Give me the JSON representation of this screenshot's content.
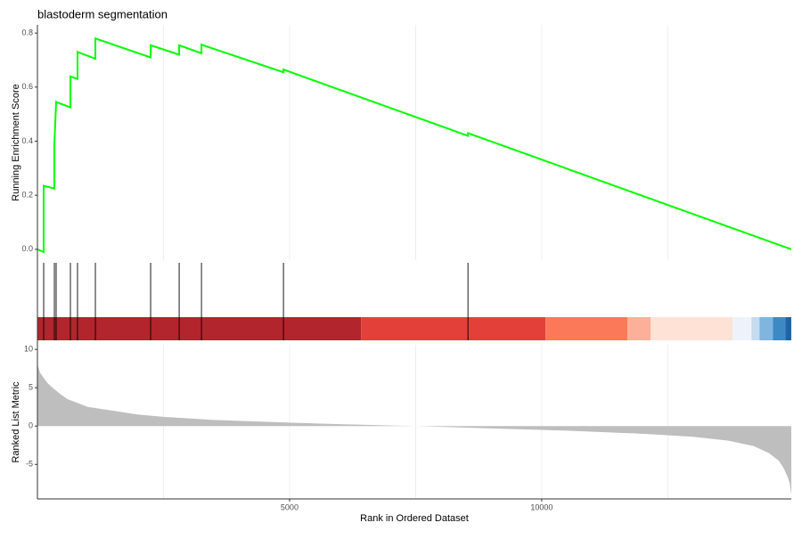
{
  "chart_data": [
    {
      "type": "line",
      "title": "blastoderm segmentation",
      "ylabel": "Running Enrichment Score",
      "color": "#00ff00",
      "x": [
        0,
        124,
        124,
        336,
        336,
        371,
        654,
        654,
        795,
        795,
        1149,
        1149,
        2245,
        2245,
        2811,
        2811,
        3253,
        3253,
        4879,
        4879,
        8538,
        8538,
        14950
      ],
      "values": [
        0.0,
        -0.01,
        0.235,
        0.225,
        0.39,
        0.545,
        0.525,
        0.64,
        0.63,
        0.73,
        0.705,
        0.78,
        0.71,
        0.755,
        0.72,
        0.755,
        0.725,
        0.757,
        0.655,
        0.665,
        0.42,
        0.43,
        0.0
      ],
      "xlim": [
        0,
        14950
      ],
      "ylim": [
        -0.04,
        0.83
      ],
      "yticks": [
        {
          "value": 0,
          "label": "0.0"
        },
        {
          "value": 0.2,
          "label": "0.2"
        },
        {
          "value": 0.4,
          "label": "0.4"
        },
        {
          "value": 0.6,
          "label": "0.6"
        },
        {
          "value": 0.8,
          "label": "0.8"
        }
      ],
      "xgrid": [
        2500,
        5000,
        7500,
        10000,
        12500
      ]
    },
    {
      "type": "rug",
      "color": "#000000",
      "x": [
        0,
        124,
        336,
        371,
        654,
        795,
        1149,
        2245,
        2811,
        3253,
        4879,
        8538
      ],
      "xlim": [
        0,
        14950
      ],
      "bands": {
        "breaks": [
          0,
          6417,
          10076,
          11702,
          12162,
          13788,
          14160,
          14319,
          14584,
          14832,
          14950
        ],
        "colors": [
          "#b2252c",
          "#e3403a",
          "#fb7858",
          "#fcb09a",
          "#fee2d6",
          "#eef3fb",
          "#c6dbef",
          "#7fb5de",
          "#3d89c3",
          "#2064a8"
        ]
      }
    },
    {
      "type": "area",
      "ylabel": "Ranked List Metric",
      "xlabel": "Rank in Ordered Dataset",
      "color": "#bebebe",
      "x": [
        0,
        50,
        100,
        200,
        300,
        450,
        600,
        800,
        1000,
        1500,
        2000,
        2500,
        3500,
        5000,
        6000,
        7500,
        9000,
        10500,
        12000,
        13000,
        13700,
        14200,
        14500,
        14700,
        14800,
        14880,
        14920,
        14950
      ],
      "values": [
        8,
        7,
        6.5,
        5.6,
        5,
        4.2,
        3.5,
        3,
        2.5,
        2,
        1.5,
        1.2,
        0.8,
        0.45,
        0.25,
        0,
        -0.3,
        -0.6,
        -1,
        -1.4,
        -1.9,
        -2.6,
        -3.5,
        -4.5,
        -5.5,
        -6.7,
        -7.5,
        -9
      ],
      "xlim": [
        0,
        14950
      ],
      "ylim": [
        -9.5,
        10.6
      ],
      "yticks": [
        -5,
        0,
        5,
        10
      ],
      "xticks": [
        5000,
        10000
      ],
      "xgrid": [
        2500,
        5000,
        7500,
        10000,
        12500
      ]
    }
  ]
}
